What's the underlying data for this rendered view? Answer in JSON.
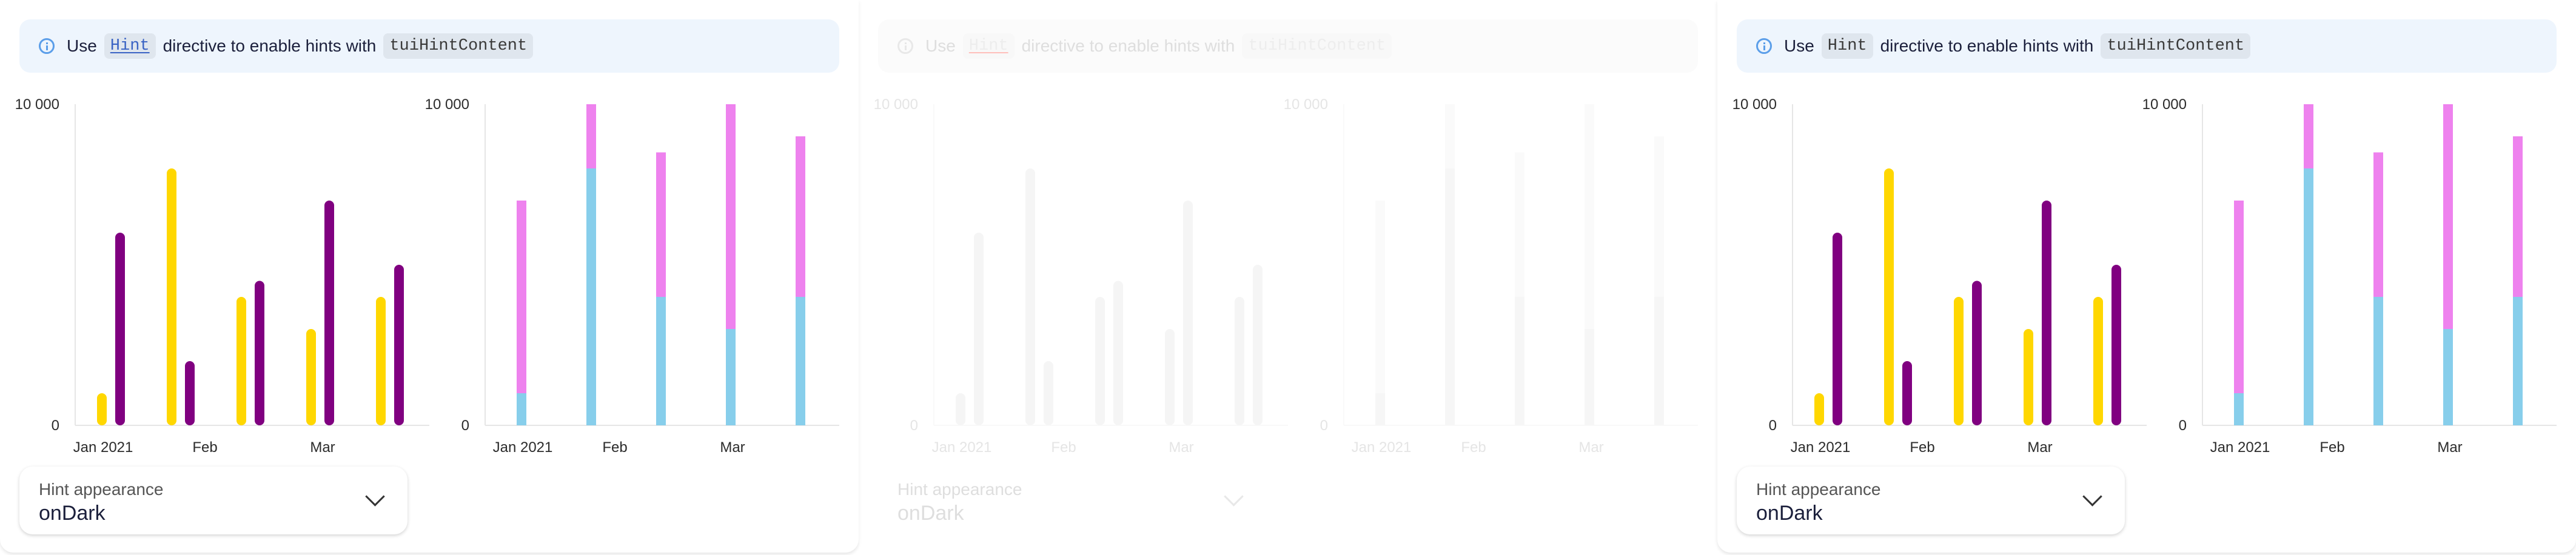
{
  "panels": [
    {
      "id": "p1",
      "faded": false,
      "notice": {
        "use": "Use",
        "hint": "Hint",
        "middle": "directive to enable hints with",
        "content": "tuiHintContent"
      },
      "select": {
        "label": "Hint appearance",
        "value": "onDark"
      }
    },
    {
      "id": "p2",
      "faded": true,
      "notice": {
        "use": "Use",
        "hint": "Hint",
        "middle": "directive to enable hints with",
        "content": "tuiHintContent"
      },
      "select": {
        "label": "Hint appearance",
        "value": "onDark"
      }
    },
    {
      "id": "p3",
      "faded": false,
      "notice": {
        "use": "Use",
        "hint": "Hint",
        "middle": "directive to enable hints with",
        "content": "tuiHintContent"
      },
      "select": {
        "label": "Hint appearance",
        "value": "onDark"
      }
    }
  ],
  "chart_data": [
    {
      "type": "bar",
      "categories": [
        "1",
        "2",
        "3",
        "4",
        "5"
      ],
      "x_labels": [
        "Jan 2021",
        "Feb",
        "Mar"
      ],
      "series": [
        {
          "color": "#ffd700",
          "values": [
            1000,
            8000,
            4000,
            3000,
            4000
          ]
        },
        {
          "color": "#800080",
          "values": [
            6000,
            2000,
            4500,
            7000,
            5000
          ]
        }
      ],
      "y_ticks": [
        "10 000",
        "0"
      ],
      "ylim": [
        0,
        10000
      ]
    },
    {
      "type": "bar",
      "stacked": true,
      "categories": [
        "1",
        "2",
        "3",
        "4",
        "5"
      ],
      "x_labels": [
        "Jan 2021",
        "Feb",
        "Mar"
      ],
      "series": [
        {
          "color": "#87ceeb",
          "values": [
            1000,
            8000,
            4000,
            3000,
            4000
          ]
        },
        {
          "color": "#ee82ee",
          "values": [
            6000,
            2000,
            4500,
            7000,
            5000
          ]
        }
      ],
      "y_ticks": [
        "10 000",
        "0"
      ],
      "ylim": [
        0,
        10000
      ]
    }
  ]
}
